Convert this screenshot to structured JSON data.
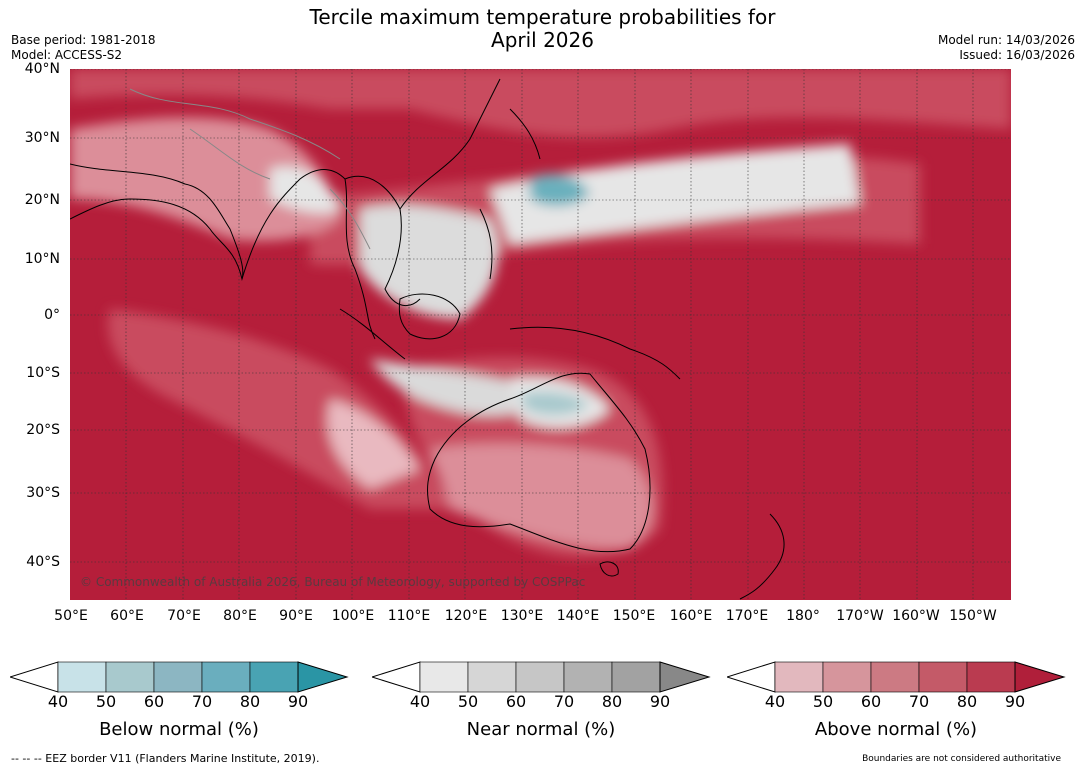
{
  "title_line1": "Tercile maximum temperature probabilities for",
  "title_line2": "April 2026",
  "meta_left": [
    "Base period: 1981-2018",
    "Model: ACCESS-S2"
  ],
  "meta_right": [
    "Model run: 14/03/2026",
    "Issued: 16/03/2026"
  ],
  "lat_labels": [
    "40°N",
    "30°N",
    "20°N",
    "10°N",
    "0°",
    "10°S",
    "20°S",
    "30°S",
    "40°S"
  ],
  "lon_labels": [
    "50°E",
    "60°E",
    "70°E",
    "80°E",
    "90°E",
    "100°E",
    "110°E",
    "120°E",
    "130°E",
    "140°E",
    "150°E",
    "160°E",
    "170°E",
    "180°",
    "170°W",
    "160°W",
    "150°W"
  ],
  "copyright": "© Commonwealth of Australia 2026, Bureau of Meteorology, supported by COSPPac",
  "colorbars": [
    {
      "label": "Below normal (%)",
      "ticks": [
        "40",
        "50",
        "60",
        "70",
        "80",
        "90"
      ],
      "colors": [
        "#ffffff",
        "#c8e2e8",
        "#a8c9cd",
        "#8cb6c2",
        "#6aaebe",
        "#49a3b3",
        "#2a95a5"
      ]
    },
    {
      "label": "Near normal (%)",
      "ticks": [
        "40",
        "50",
        "60",
        "70",
        "80",
        "90"
      ],
      "colors": [
        "#ffffff",
        "#e8e8e8",
        "#d6d6d6",
        "#c6c6c6",
        "#b2b2b2",
        "#a2a2a2",
        "#888888"
      ]
    },
    {
      "label": "Above normal (%)",
      "ticks": [
        "40",
        "50",
        "60",
        "70",
        "80",
        "90"
      ],
      "colors": [
        "#ffffff",
        "#e2b8be",
        "#d6959c",
        "#cc7a83",
        "#c45a68",
        "#ba3b50",
        "#b01f3a"
      ]
    }
  ],
  "map_colors": {
    "above_strong": "#b51e3a",
    "above_mid": "#c94b5f",
    "above_light": "#dc8e99",
    "above_pale": "#e9b9c0",
    "near": "#e6e6e6",
    "below": "#6ab0bd",
    "land_line": "#000000",
    "border_line": "#888888"
  },
  "footer_left": "--  --  -- EEZ border V11 (Flanders Marine Institute, 2019).",
  "footer_right": "Boundaries are not considered authoritative"
}
